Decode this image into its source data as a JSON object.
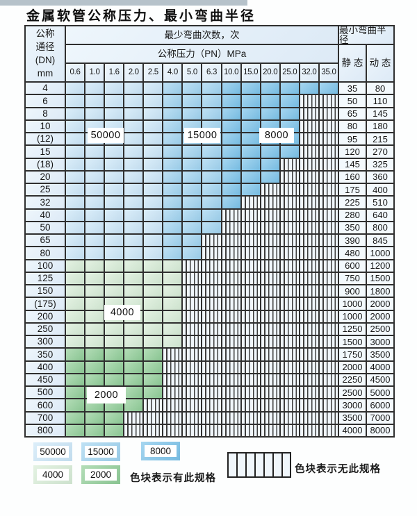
{
  "page": {
    "title": "金属软管公称压力、最小弯曲半径"
  },
  "table": {
    "corner": {
      "lines": [
        "公称",
        "通径",
        "(DN)",
        "mm"
      ]
    },
    "cycles_header": "最少弯曲次数，次",
    "pressure_header": "公称压力（PN）MPa",
    "radius_header": "最小弯曲半径",
    "static_header": "静 态",
    "dynamic_header": "动 态",
    "pressure_columns": [
      "0.6",
      "1.0",
      "1.6",
      "2.0",
      "2.5",
      "4.0",
      "5.0",
      "6.3",
      "10.0",
      "15.0",
      "20.0",
      "25.0",
      "32.0",
      "35.0"
    ],
    "zones": {
      "b1": {
        "cycles": "50000",
        "color": "#cbe6f7",
        "pressure_span": [
          "0.6",
          "2.5"
        ]
      },
      "b2": {
        "cycles": "15000",
        "color": "#a0d3ef",
        "pressure_span": [
          "4.0",
          "6.3"
        ]
      },
      "b3": {
        "cycles": "8000",
        "color": "#7cc3e9",
        "pressure_span": [
          "10.0",
          "35.0"
        ]
      },
      "g1": {
        "cycles": "4000",
        "color": "#d7ecd5",
        "pressure_span": [
          "0.6",
          "4.0"
        ]
      },
      "g2": {
        "cycles": "2000",
        "color": "#90cd96",
        "pressure_span": [
          "0.6",
          "2.5"
        ]
      }
    },
    "hatch": {
      "background": "#f0f6fb",
      "stripe": "#3d3d3d"
    },
    "rows": [
      {
        "dn": "4",
        "band": "blue",
        "colored_through": 14,
        "static": "35",
        "dynamic": "80"
      },
      {
        "dn": "6",
        "band": "blue",
        "colored_through": 12,
        "static": "50",
        "dynamic": "110"
      },
      {
        "dn": "8",
        "band": "blue",
        "colored_through": 12,
        "static": "65",
        "dynamic": "145"
      },
      {
        "dn": "10",
        "band": "blue",
        "colored_through": 12,
        "static": "80",
        "dynamic": "180"
      },
      {
        "dn": "(12)",
        "band": "blue",
        "colored_through": 12,
        "static": "95",
        "dynamic": "215"
      },
      {
        "dn": "15",
        "band": "blue",
        "colored_through": 12,
        "static": "120",
        "dynamic": "270"
      },
      {
        "dn": "(18)",
        "band": "blue",
        "colored_through": 11,
        "static": "145",
        "dynamic": "325"
      },
      {
        "dn": "20",
        "band": "blue",
        "colored_through": 11,
        "static": "160",
        "dynamic": "360"
      },
      {
        "dn": "25",
        "band": "blue",
        "colored_through": 10,
        "static": "175",
        "dynamic": "400"
      },
      {
        "dn": "32",
        "band": "blue",
        "colored_through": 9,
        "static": "225",
        "dynamic": "510"
      },
      {
        "dn": "40",
        "band": "blue",
        "colored_through": 8,
        "static": "280",
        "dynamic": "640"
      },
      {
        "dn": "50",
        "band": "blue",
        "colored_through": 8,
        "static": "350",
        "dynamic": "800"
      },
      {
        "dn": "65",
        "band": "blue",
        "colored_through": 7,
        "static": "390",
        "dynamic": "845"
      },
      {
        "dn": "80",
        "band": "blue",
        "colored_through": 7,
        "static": "480",
        "dynamic": "1000"
      },
      {
        "dn": "100",
        "band": "g1",
        "colored_through": 6,
        "static": "600",
        "dynamic": "1200"
      },
      {
        "dn": "125",
        "band": "g1",
        "colored_through": 6,
        "static": "750",
        "dynamic": "1500"
      },
      {
        "dn": "150",
        "band": "g1",
        "colored_through": 6,
        "static": "900",
        "dynamic": "1800"
      },
      {
        "dn": "(175)",
        "band": "g1",
        "colored_through": 6,
        "static": "1000",
        "dynamic": "2000"
      },
      {
        "dn": "200",
        "band": "g1",
        "colored_through": 6,
        "static": "1000",
        "dynamic": "2000"
      },
      {
        "dn": "250",
        "band": "g1",
        "colored_through": 6,
        "static": "1250",
        "dynamic": "2500"
      },
      {
        "dn": "300",
        "band": "g1",
        "colored_through": 6,
        "static": "1500",
        "dynamic": "3000"
      },
      {
        "dn": "350",
        "band": "g2",
        "colored_through": 5,
        "static": "1750",
        "dynamic": "3500"
      },
      {
        "dn": "400",
        "band": "g2",
        "colored_through": 5,
        "static": "2000",
        "dynamic": "4000"
      },
      {
        "dn": "450",
        "band": "g2",
        "colored_through": 5,
        "static": "2250",
        "dynamic": "4500"
      },
      {
        "dn": "500",
        "band": "g2",
        "colored_through": 5,
        "static": "2500",
        "dynamic": "5000"
      },
      {
        "dn": "600",
        "band": "g2",
        "colored_through": 4,
        "static": "3000",
        "dynamic": "6000"
      },
      {
        "dn": "700",
        "band": "g2",
        "colored_through": 3,
        "static": "3500",
        "dynamic": "7000"
      },
      {
        "dn": "800",
        "band": "g2",
        "colored_through": 3,
        "static": "4000",
        "dynamic": "8000"
      }
    ],
    "cycle_labels": [
      {
        "text": "50000"
      },
      {
        "text": "15000"
      },
      {
        "text": "8000"
      },
      {
        "text": "4000"
      },
      {
        "text": "2000"
      }
    ]
  },
  "legend": {
    "chips": [
      {
        "value": "50000",
        "color": "#cbe6f7"
      },
      {
        "value": "15000",
        "color": "#a0d3ef"
      },
      {
        "value": "8000",
        "color": "#7cc3e9"
      },
      {
        "value": "4000",
        "color": "#d7ecd5"
      },
      {
        "value": "2000",
        "color": "#90cd96"
      }
    ],
    "has_spec_text": "色块表示有此规格",
    "no_spec_text": "色块表示无此规格"
  }
}
